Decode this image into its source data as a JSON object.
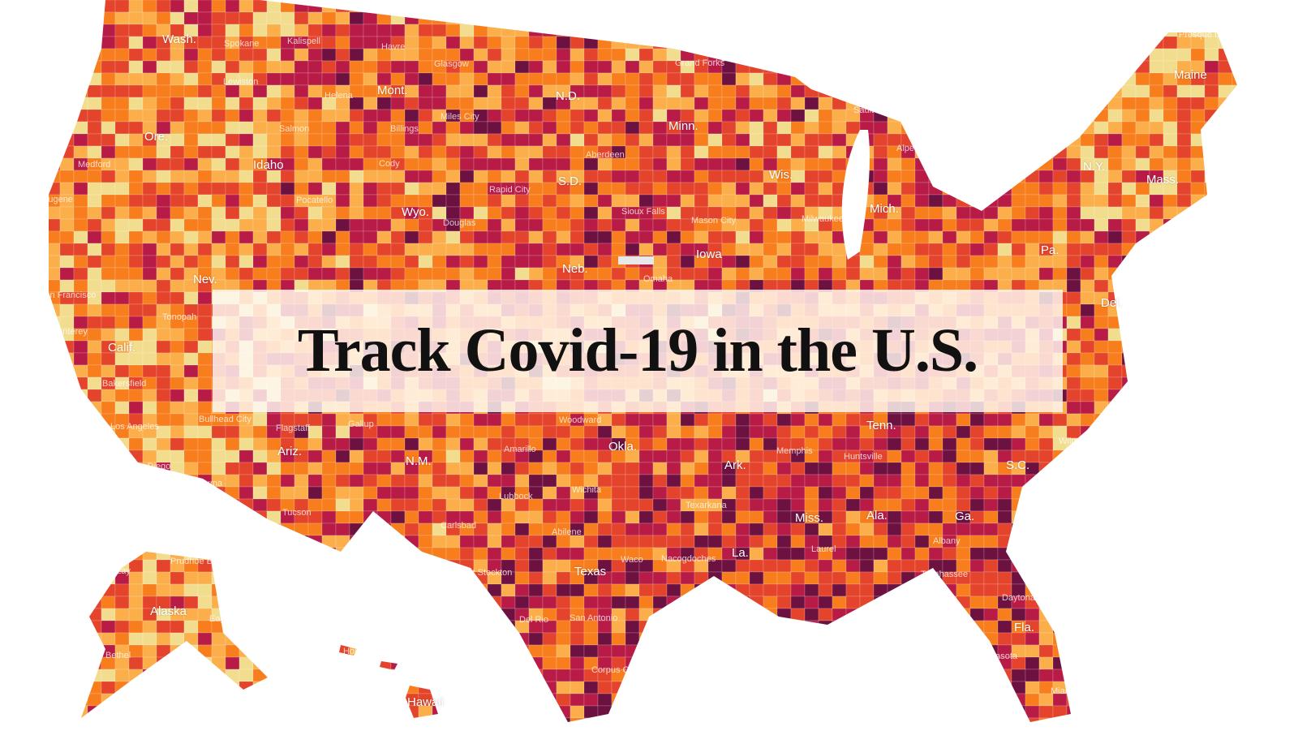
{
  "title": "Track Covid-19 in the U.S.",
  "palette": [
    "#f2dc8e",
    "#fbae4a",
    "#f77d1d",
    "#e4442b",
    "#b81c46",
    "#6d1140"
  ],
  "no_data_color": "#ddd",
  "map_labels": {
    "states": [
      "Wash.",
      "Ore.",
      "Calif.",
      "Nev.",
      "Idaho",
      "Mont.",
      "Wyo.",
      "Ariz.",
      "N.M.",
      "N.D.",
      "S.D.",
      "Neb.",
      "Minn.",
      "Iowa",
      "Wis.",
      "Mich.",
      "Okla.",
      "Texas",
      "Ark.",
      "La.",
      "Miss.",
      "Ala.",
      "Ga.",
      "Tenn.",
      "Fla.",
      "S.C.",
      "Pa.",
      "N.Y.",
      "Mass.",
      "Maine",
      "Del.",
      "Alaska",
      "Hawaii"
    ],
    "cities": [
      "Spokane",
      "Kalispell",
      "Havre",
      "Glasgow",
      "Lewiston",
      "Helena",
      "Billings",
      "Miles City",
      "Grand Forks",
      "Medford",
      "Eugene",
      "Salmon",
      "Pocatello",
      "Cody",
      "Douglas",
      "Aberdeen",
      "Rapid City",
      "Sioux Falls",
      "Mason City",
      "Milwaukee",
      "Omaha",
      "San Francisco",
      "Monterey",
      "Tonopah",
      "Bakersfield",
      "Los Angeles",
      "San Diego",
      "Yuma",
      "Bullhead City",
      "Flagstaff",
      "Gallup",
      "Tucson",
      "Carlsbad",
      "Amarillo",
      "Lubbock",
      "Woodward",
      "Wichita",
      "Abilene",
      "Fort Stockton",
      "Waco",
      "Del Rio",
      "San Antonio",
      "Corpus Christi",
      "Nacogdoches",
      "Texarkana",
      "Memphis",
      "Huntsville",
      "Laurel",
      "Albany",
      "Tallahassee",
      "Daytona Beach",
      "Sarasota",
      "Miami",
      "Wilmington",
      "Presque Isle",
      "Sault Ste. Marie",
      "Alpena",
      "Point Lay",
      "Prudhoe Bay",
      "Bethel",
      "Kodiak",
      "Eagle",
      "Honolulu"
    ]
  }
}
